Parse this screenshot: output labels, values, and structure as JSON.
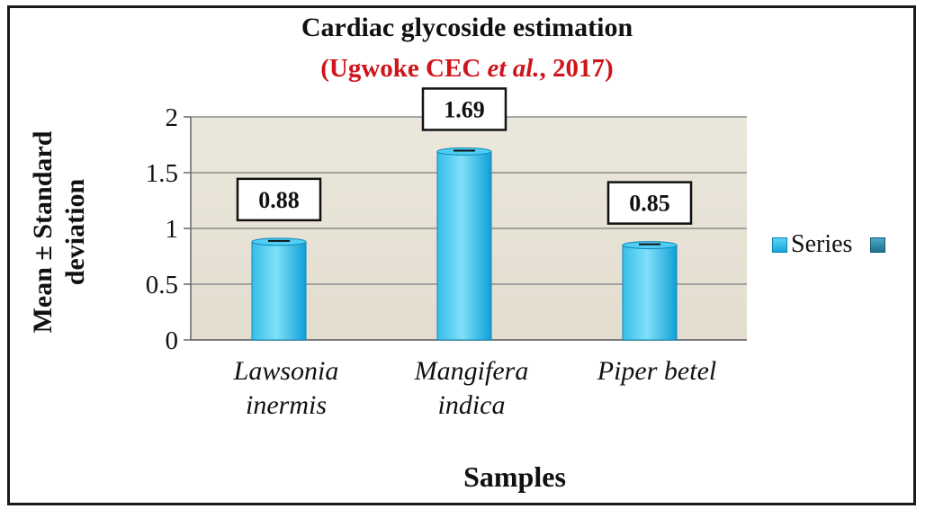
{
  "chart_data": {
    "type": "bar",
    "title": "Cardiac glycoside estimation",
    "subtitle_prefix": "(Ugwoke CEC ",
    "subtitle_italic": "et al.",
    "subtitle_suffix": ", 2017)",
    "xlabel": "Samples",
    "ylabel": "Mean ± Standard deviation",
    "categories": [
      [
        "Lawsonia",
        "inermis"
      ],
      [
        "Mangifera",
        "indica"
      ],
      [
        "Piper betel"
      ]
    ],
    "series": [
      {
        "name": "Series",
        "values": [
          0.88,
          1.69,
          0.85
        ]
      }
    ],
    "data_labels": [
      "0.88",
      "1.69",
      "0.85"
    ],
    "ylim": [
      0,
      2
    ],
    "yticks": [
      "0",
      "0.5",
      "1",
      "1.5",
      "2"
    ],
    "ytick_values": [
      0,
      0.5,
      1,
      1.5,
      2
    ],
    "grid": true,
    "legend_position": "right",
    "colors": {
      "bar_top": "#6fdaf7",
      "bar_bottom": "#0f9fd8",
      "plot_background": "#e8e4d8",
      "title_accent": "#d0141b"
    }
  }
}
